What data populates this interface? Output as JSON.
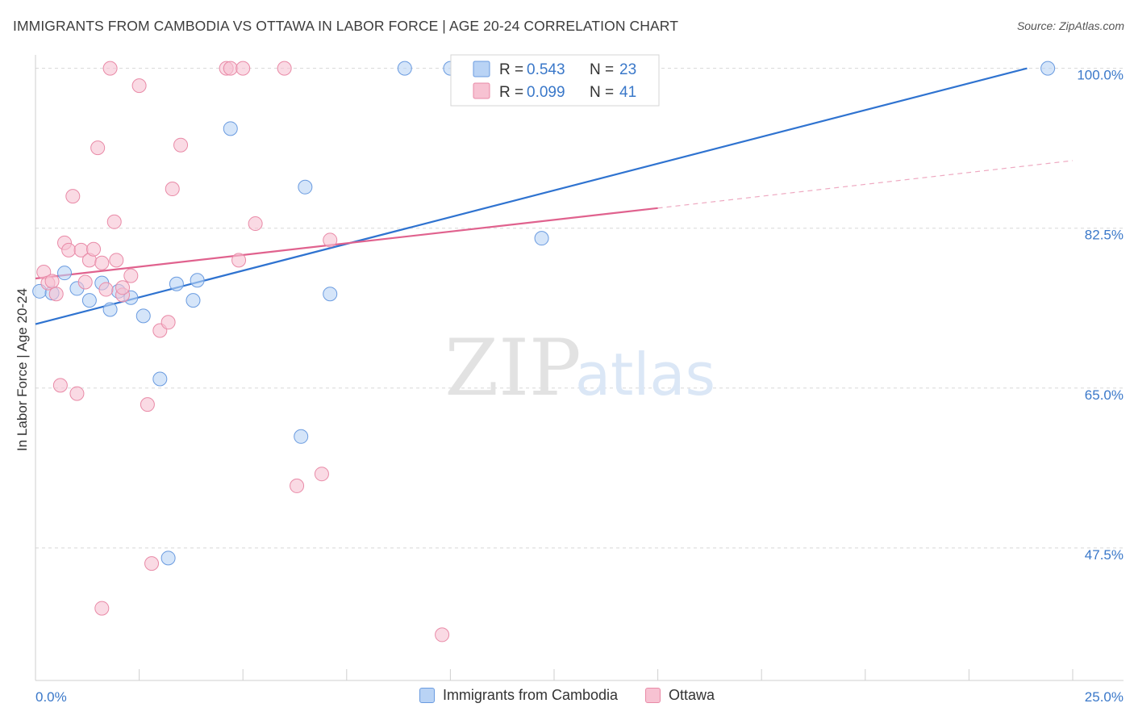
{
  "header": {
    "title": "IMMIGRANTS FROM CAMBODIA VS OTTAWA IN LABOR FORCE | AGE 20-24 CORRELATION CHART",
    "source": "Source: ZipAtlas.com"
  },
  "watermark": {
    "zip": "ZIP",
    "atlas": "atlas"
  },
  "colors": {
    "blue_fill": "#b9d3f5",
    "blue_stroke": "#6a9be0",
    "blue_line": "#2f73d0",
    "pink_fill": "#f7c2d2",
    "pink_stroke": "#e98aa7",
    "pink_line": "#e0628e",
    "axis_label_blue": "#3a78c9",
    "grid": "#d8d8d8"
  },
  "legend": {
    "rows": [
      {
        "r_label": "R = ",
        "r_value": "0.543",
        "n_label": "N = ",
        "n_value": "23",
        "color": "blue"
      },
      {
        "r_label": "R = ",
        "r_value": "0.099",
        "n_label": "N = ",
        "n_value": "41",
        "color": "pink"
      }
    ]
  },
  "bottom_legend": [
    {
      "label": "Immigrants from Cambodia",
      "color": "blue"
    },
    {
      "label": "Ottawa",
      "color": "pink"
    }
  ],
  "chart_data": {
    "type": "scatter",
    "title": "IMMIGRANTS FROM CAMBODIA VS OTTAWA IN LABOR FORCE | AGE 20-24 CORRELATION CHART",
    "xlabel": "",
    "ylabel": "In Labor Force | Age 20-24",
    "xlim": [
      0,
      25
    ],
    "ylim": [
      33,
      102
    ],
    "x_tick_labels": [
      {
        "value": 0,
        "label": "0.0%"
      },
      {
        "value": 25,
        "label": "25.0%"
      }
    ],
    "y_tick_labels": [
      {
        "value": 100,
        "label": "100.0%"
      },
      {
        "value": 82.5,
        "label": "82.5%"
      },
      {
        "value": 65,
        "label": "65.0%"
      },
      {
        "value": 47.5,
        "label": "47.5%"
      }
    ],
    "grid": true,
    "legend_position": "top-center",
    "series": [
      {
        "name": "Immigrants from Cambodia",
        "color": "blue",
        "points": [
          [
            0.1,
            75.6
          ],
          [
            0.4,
            75.4
          ],
          [
            0.7,
            77.6
          ],
          [
            1.0,
            75.9
          ],
          [
            1.3,
            74.6
          ],
          [
            1.6,
            76.5
          ],
          [
            1.8,
            73.6
          ],
          [
            2.0,
            75.6
          ],
          [
            2.3,
            74.9
          ],
          [
            2.6,
            72.9
          ],
          [
            3.0,
            66.0
          ],
          [
            3.4,
            76.4
          ],
          [
            3.9,
            76.8
          ],
          [
            3.8,
            74.6
          ],
          [
            4.7,
            93.4
          ],
          [
            6.4,
            59.7
          ],
          [
            6.5,
            87.0
          ],
          [
            7.1,
            75.3
          ],
          [
            8.9,
            100.0
          ],
          [
            10.0,
            100.0
          ],
          [
            12.2,
            81.4
          ],
          [
            24.4,
            100.0
          ],
          [
            3.2,
            46.4
          ]
        ],
        "trend": {
          "x0": 0,
          "y0": 72.0,
          "x1": 23.9,
          "y1": 100.0
        }
      },
      {
        "name": "Ottawa",
        "color": "pink",
        "points": [
          [
            0.2,
            77.7
          ],
          [
            0.3,
            76.5
          ],
          [
            0.5,
            75.3
          ],
          [
            0.6,
            65.3
          ],
          [
            0.7,
            80.9
          ],
          [
            0.8,
            80.1
          ],
          [
            0.9,
            86.0
          ],
          [
            1.0,
            64.4
          ],
          [
            1.1,
            80.1
          ],
          [
            1.2,
            76.6
          ],
          [
            1.3,
            79.0
          ],
          [
            1.4,
            80.2
          ],
          [
            1.5,
            91.3
          ],
          [
            1.6,
            78.7
          ],
          [
            1.8,
            100.0
          ],
          [
            1.9,
            83.2
          ],
          [
            1.95,
            79.0
          ],
          [
            2.1,
            75.2
          ],
          [
            2.3,
            77.3
          ],
          [
            2.5,
            98.1
          ],
          [
            2.7,
            63.2
          ],
          [
            2.8,
            45.8
          ],
          [
            3.0,
            71.3
          ],
          [
            3.2,
            72.2
          ],
          [
            3.3,
            86.8
          ],
          [
            3.5,
            91.6
          ],
          [
            4.6,
            100.0
          ],
          [
            4.7,
            100.0
          ],
          [
            4.9,
            79.0
          ],
          [
            5.0,
            100.0
          ],
          [
            5.3,
            83.0
          ],
          [
            6.0,
            100.0
          ],
          [
            6.3,
            54.3
          ],
          [
            6.9,
            55.6
          ],
          [
            7.1,
            81.2
          ],
          [
            9.8,
            38.0
          ],
          [
            11.8,
            100.0
          ],
          [
            0.4,
            76.7
          ],
          [
            1.6,
            40.9
          ],
          [
            1.7,
            75.8
          ],
          [
            2.1,
            76.0
          ]
        ],
        "trend": {
          "x0": 0,
          "y0": 77.0,
          "x1": 15.0,
          "y1": 84.7
        },
        "trend_extension": {
          "x0": 15.0,
          "y0": 84.7,
          "x1": 25.0,
          "y1": 89.9
        }
      }
    ]
  }
}
